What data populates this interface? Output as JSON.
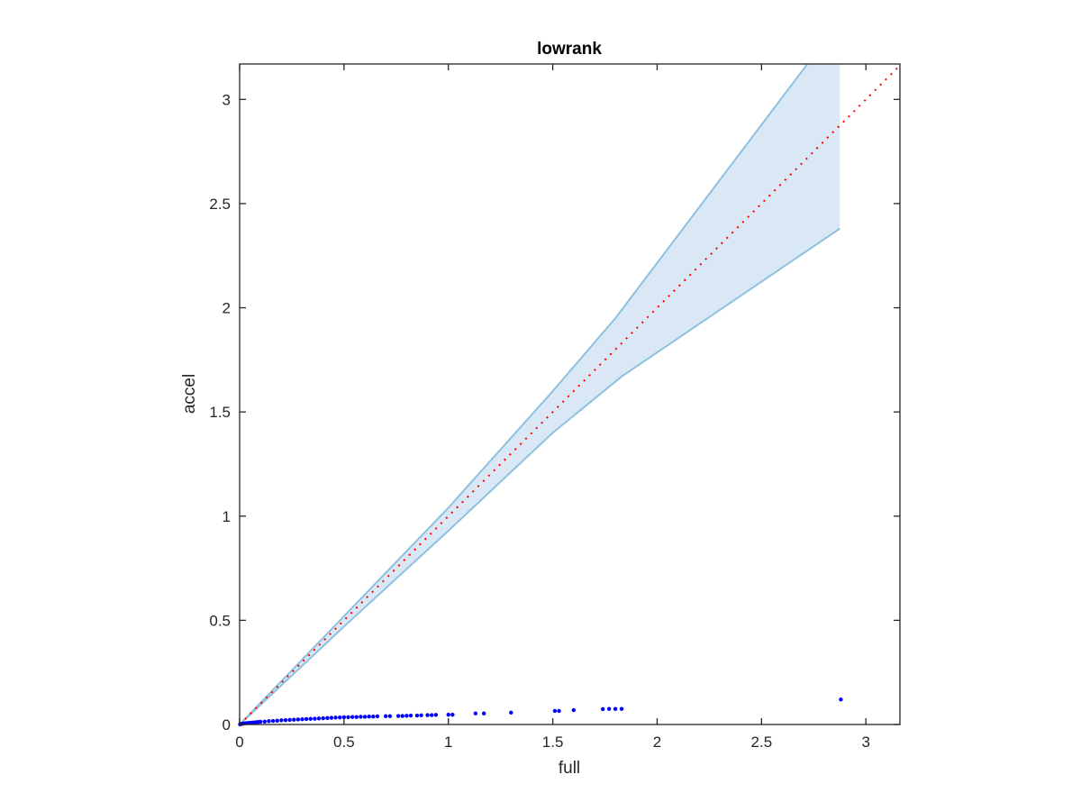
{
  "chart_data": {
    "type": "scatter",
    "title": "lowrank",
    "xlabel": "full",
    "ylabel": "accel",
    "xlim": [
      0,
      3.163
    ],
    "ylim": [
      0,
      3.17
    ],
    "xticks": [
      "0",
      "0.5",
      "1",
      "1.5",
      "2",
      "2.5",
      "3"
    ],
    "yticks": [
      "0",
      "0.5",
      "1",
      "1.5",
      "2",
      "2.5",
      "3"
    ],
    "grid": false,
    "legend": "none",
    "band": {
      "color": "#d9e8f4",
      "edge_color": "#8ec1e0",
      "upper": [
        [
          0,
          0
        ],
        [
          0.5,
          0.52
        ],
        [
          1,
          1.04
        ],
        [
          1.5,
          1.6
        ],
        [
          1.8,
          1.95
        ],
        [
          2.72,
          3.17
        ],
        [
          2.875,
          3.17
        ]
      ],
      "lower": [
        [
          0,
          0
        ],
        [
          0.5,
          0.47
        ],
        [
          1,
          0.93
        ],
        [
          1.5,
          1.4
        ],
        [
          1.83,
          1.67
        ],
        [
          2.875,
          2.38
        ]
      ]
    },
    "reference_line": {
      "style": "dotted",
      "color": "#ff0000",
      "points": [
        [
          0,
          0
        ],
        [
          3.163,
          3.163
        ]
      ]
    },
    "points_color": "#0000ff",
    "points": [
      [
        0.002,
        0.001
      ],
      [
        0.005,
        0.002
      ],
      [
        0.01,
        0.003
      ],
      [
        0.015,
        0.004
      ],
      [
        0.02,
        0.005
      ],
      [
        0.03,
        0.006
      ],
      [
        0.04,
        0.007
      ],
      [
        0.05,
        0.008
      ],
      [
        0.06,
        0.009
      ],
      [
        0.07,
        0.01
      ],
      [
        0.08,
        0.011
      ],
      [
        0.09,
        0.012
      ],
      [
        0.1,
        0.013
      ],
      [
        0.12,
        0.014
      ],
      [
        0.14,
        0.016
      ],
      [
        0.16,
        0.017
      ],
      [
        0.18,
        0.018
      ],
      [
        0.2,
        0.02
      ],
      [
        0.22,
        0.021
      ],
      [
        0.24,
        0.022
      ],
      [
        0.26,
        0.023
      ],
      [
        0.28,
        0.024
      ],
      [
        0.3,
        0.025
      ],
      [
        0.32,
        0.026
      ],
      [
        0.34,
        0.027
      ],
      [
        0.36,
        0.028
      ],
      [
        0.38,
        0.029
      ],
      [
        0.4,
        0.03
      ],
      [
        0.42,
        0.031
      ],
      [
        0.44,
        0.032
      ],
      [
        0.46,
        0.033
      ],
      [
        0.48,
        0.034
      ],
      [
        0.5,
        0.035
      ],
      [
        0.52,
        0.035
      ],
      [
        0.54,
        0.036
      ],
      [
        0.56,
        0.036
      ],
      [
        0.58,
        0.037
      ],
      [
        0.6,
        0.037
      ],
      [
        0.62,
        0.038
      ],
      [
        0.64,
        0.038
      ],
      [
        0.66,
        0.039
      ],
      [
        0.7,
        0.04
      ],
      [
        0.72,
        0.04
      ],
      [
        0.76,
        0.041
      ],
      [
        0.78,
        0.041
      ],
      [
        0.8,
        0.042
      ],
      [
        0.82,
        0.043
      ],
      [
        0.85,
        0.043
      ],
      [
        0.87,
        0.044
      ],
      [
        0.9,
        0.045
      ],
      [
        0.92,
        0.045
      ],
      [
        0.94,
        0.046
      ],
      [
        1.0,
        0.047
      ],
      [
        1.02,
        0.047
      ],
      [
        1.13,
        0.053
      ],
      [
        1.17,
        0.053
      ],
      [
        1.3,
        0.057
      ],
      [
        1.51,
        0.065
      ],
      [
        1.53,
        0.065
      ],
      [
        1.6,
        0.069
      ],
      [
        1.74,
        0.074
      ],
      [
        1.77,
        0.075
      ],
      [
        1.8,
        0.075
      ],
      [
        1.83,
        0.075
      ],
      [
        2.88,
        0.12
      ]
    ]
  }
}
